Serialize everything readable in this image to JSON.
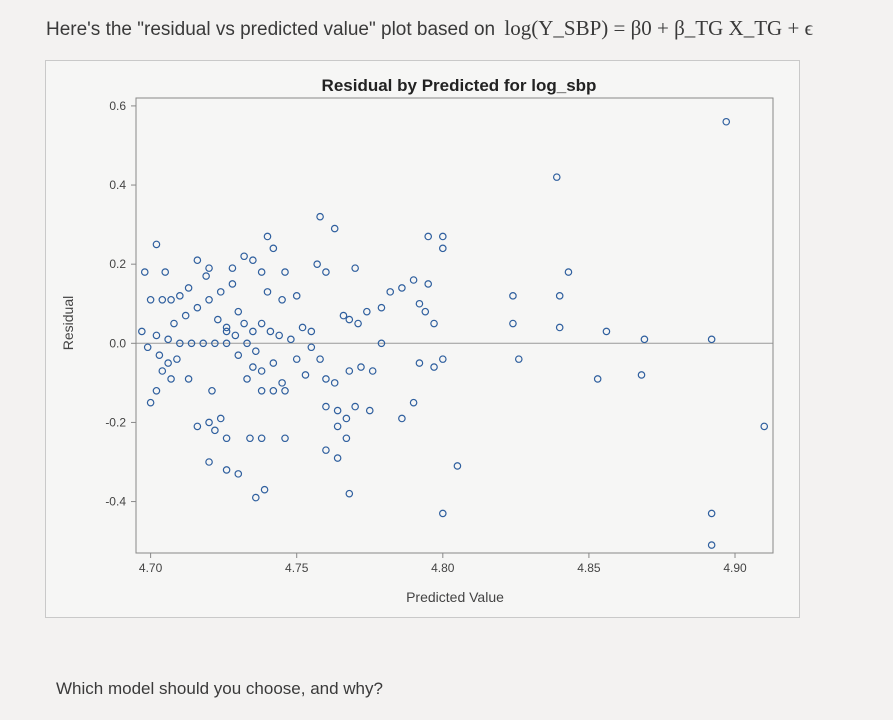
{
  "intro": {
    "text": "Here's the \"residual vs predicted value\" plot based on",
    "formula": "log(Y_SBP) = β0 + β_TG X_TG + ϵ"
  },
  "question": "Which model should you choose, and why?",
  "colors": {
    "marker": "#2f5f9e",
    "refline": "#999999",
    "frame": "#888888"
  },
  "chart_data": {
    "type": "scatter",
    "title": "Residual by Predicted for log_sbp",
    "xlabel": "Predicted Value",
    "ylabel": "Residual",
    "xlim": [
      4.695,
      4.913
    ],
    "ylim": [
      -0.53,
      0.62
    ],
    "xticks": [
      4.7,
      4.75,
      4.8,
      4.85,
      4.9
    ],
    "xtick_labels": [
      "4.70",
      "4.75",
      "4.80",
      "4.85",
      "4.90"
    ],
    "yticks": [
      0.6,
      0.4,
      0.2,
      0.0,
      -0.2,
      -0.4
    ],
    "ytick_labels": [
      "0.6",
      "0.4",
      "0.2",
      "0.0",
      "-0.2",
      "-0.4"
    ],
    "reference_line_y": 0.0,
    "grid": false,
    "legend": "none",
    "points": [
      [
        4.702,
        0.25
      ],
      [
        4.698,
        0.18
      ],
      [
        4.705,
        0.18
      ],
      [
        4.7,
        0.11
      ],
      [
        4.704,
        0.11
      ],
      [
        4.707,
        0.11
      ],
      [
        4.71,
        0.12
      ],
      [
        4.713,
        0.14
      ],
      [
        4.697,
        0.03
      ],
      [
        4.702,
        0.02
      ],
      [
        4.706,
        0.01
      ],
      [
        4.71,
        0.0
      ],
      [
        4.714,
        0.0
      ],
      [
        4.718,
        0.0
      ],
      [
        4.722,
        0.0
      ],
      [
        4.726,
        0.0
      ],
      [
        4.699,
        -0.01
      ],
      [
        4.703,
        -0.03
      ],
      [
        4.706,
        -0.05
      ],
      [
        4.709,
        -0.04
      ],
      [
        4.704,
        -0.07
      ],
      [
        4.707,
        -0.09
      ],
      [
        4.702,
        -0.12
      ],
      [
        4.7,
        -0.15
      ],
      [
        4.708,
        0.05
      ],
      [
        4.712,
        0.07
      ],
      [
        4.716,
        0.09
      ],
      [
        4.72,
        0.11
      ],
      [
        4.724,
        0.13
      ],
      [
        4.728,
        0.15
      ],
      [
        4.716,
        0.21
      ],
      [
        4.72,
        0.19
      ],
      [
        4.719,
        0.17
      ],
      [
        4.723,
        0.06
      ],
      [
        4.726,
        0.03
      ],
      [
        4.73,
        0.08
      ],
      [
        4.728,
        0.19
      ],
      [
        4.732,
        0.22
      ],
      [
        4.735,
        0.21
      ],
      [
        4.738,
        0.18
      ],
      [
        4.726,
        0.04
      ],
      [
        4.729,
        0.02
      ],
      [
        4.732,
        0.05
      ],
      [
        4.735,
        0.03
      ],
      [
        4.738,
        0.05
      ],
      [
        4.741,
        0.03
      ],
      [
        4.733,
        0.0
      ],
      [
        4.736,
        -0.02
      ],
      [
        4.73,
        -0.03
      ],
      [
        4.735,
        -0.06
      ],
      [
        4.738,
        -0.07
      ],
      [
        4.742,
        -0.05
      ],
      [
        4.733,
        -0.09
      ],
      [
        4.738,
        -0.12
      ],
      [
        4.742,
        -0.12
      ],
      [
        4.746,
        -0.12
      ],
      [
        4.744,
        0.02
      ],
      [
        4.748,
        0.01
      ],
      [
        4.752,
        0.04
      ],
      [
        4.755,
        0.03
      ],
      [
        4.74,
        0.13
      ],
      [
        4.745,
        0.11
      ],
      [
        4.75,
        0.12
      ],
      [
        4.742,
        0.24
      ],
      [
        4.74,
        0.27
      ],
      [
        4.746,
        0.18
      ],
      [
        4.75,
        -0.04
      ],
      [
        4.753,
        -0.08
      ],
      [
        4.745,
        -0.1
      ],
      [
        4.716,
        -0.21
      ],
      [
        4.72,
        -0.2
      ],
      [
        4.724,
        -0.19
      ],
      [
        4.722,
        -0.22
      ],
      [
        4.726,
        -0.24
      ],
      [
        4.72,
        -0.3
      ],
      [
        4.726,
        -0.32
      ],
      [
        4.73,
        -0.33
      ],
      [
        4.734,
        -0.24
      ],
      [
        4.738,
        -0.24
      ],
      [
        4.746,
        -0.24
      ],
      [
        4.713,
        -0.09
      ],
      [
        4.721,
        -0.12
      ],
      [
        4.736,
        -0.39
      ],
      [
        4.739,
        -0.37
      ],
      [
        4.758,
        0.32
      ],
      [
        4.763,
        0.29
      ],
      [
        4.757,
        0.2
      ],
      [
        4.76,
        0.18
      ],
      [
        4.77,
        0.19
      ],
      [
        4.755,
        -0.01
      ],
      [
        4.758,
        -0.04
      ],
      [
        4.76,
        -0.09
      ],
      [
        4.763,
        -0.1
      ],
      [
        4.768,
        -0.07
      ],
      [
        4.772,
        -0.06
      ],
      [
        4.776,
        -0.07
      ],
      [
        4.766,
        0.07
      ],
      [
        4.768,
        0.06
      ],
      [
        4.771,
        0.05
      ],
      [
        4.774,
        0.08
      ],
      [
        4.779,
        0.09
      ],
      [
        4.782,
        0.13
      ],
      [
        4.786,
        0.14
      ],
      [
        4.79,
        0.16
      ],
      [
        4.792,
        0.1
      ],
      [
        4.795,
        0.15
      ],
      [
        4.794,
        0.08
      ],
      [
        4.797,
        0.05
      ],
      [
        4.779,
        0.0
      ],
      [
        4.792,
        -0.05
      ],
      [
        4.797,
        -0.06
      ],
      [
        4.79,
        -0.15
      ],
      [
        4.786,
        -0.19
      ],
      [
        4.76,
        -0.16
      ],
      [
        4.764,
        -0.17
      ],
      [
        4.767,
        -0.19
      ],
      [
        4.77,
        -0.16
      ],
      [
        4.775,
        -0.17
      ],
      [
        4.764,
        -0.21
      ],
      [
        4.767,
        -0.24
      ],
      [
        4.76,
        -0.27
      ],
      [
        4.764,
        -0.29
      ],
      [
        4.768,
        -0.38
      ],
      [
        4.795,
        0.27
      ],
      [
        4.8,
        0.27
      ],
      [
        4.8,
        0.24
      ],
      [
        4.8,
        -0.04
      ],
      [
        4.8,
        -0.43
      ],
      [
        4.805,
        -0.31
      ],
      [
        4.824,
        0.12
      ],
      [
        4.824,
        0.05
      ],
      [
        4.826,
        -0.04
      ],
      [
        4.839,
        0.42
      ],
      [
        4.84,
        0.12
      ],
      [
        4.84,
        0.04
      ],
      [
        4.843,
        0.18
      ],
      [
        4.853,
        -0.09
      ],
      [
        4.856,
        0.03
      ],
      [
        4.869,
        0.01
      ],
      [
        4.868,
        -0.08
      ],
      [
        4.897,
        0.56
      ],
      [
        4.892,
        0.01
      ],
      [
        4.892,
        -0.43
      ],
      [
        4.892,
        -0.51
      ],
      [
        4.91,
        -0.21
      ]
    ]
  }
}
